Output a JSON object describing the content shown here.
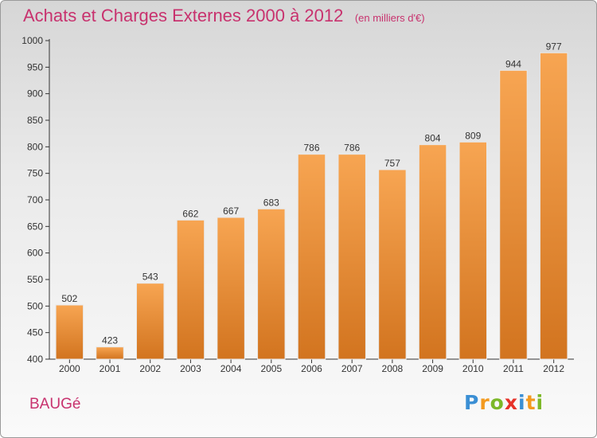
{
  "chart_data": {
    "type": "bar",
    "title": "Achats et Charges Externes 2000 à 2012",
    "subtitle": "(en milliers d'€)",
    "categories": [
      "2000",
      "2001",
      "2002",
      "2003",
      "2004",
      "2005",
      "2006",
      "2007",
      "2008",
      "2009",
      "2010",
      "2011",
      "2012"
    ],
    "values": [
      502,
      423,
      543,
      662,
      667,
      683,
      786,
      786,
      757,
      804,
      809,
      944,
      977
    ],
    "ylim": [
      400,
      1000
    ],
    "yticks": [
      400,
      450,
      500,
      550,
      600,
      650,
      700,
      750,
      800,
      850,
      900,
      950,
      1000
    ],
    "grid": false,
    "legend": "none",
    "bar_color_top": "#f7a552",
    "bar_color_bottom": "#d2741f"
  },
  "footer": {
    "commune": "BAUGé",
    "logo": {
      "letters": [
        "P",
        "r",
        "o",
        "x",
        "i",
        "t",
        "i"
      ],
      "colors": [
        "#3b8fd4",
        "#f39a1f",
        "#7cb829",
        "#e6332a",
        "#3b8fd4",
        "#f39a1f",
        "#7cb829"
      ]
    }
  },
  "colors": {
    "accent": "#c8326e",
    "axis": "#333333",
    "text": "#333333"
  }
}
